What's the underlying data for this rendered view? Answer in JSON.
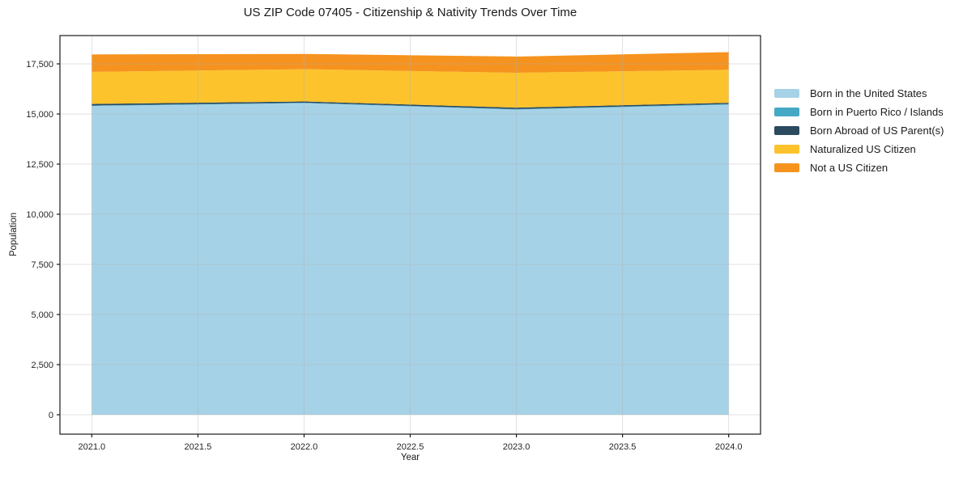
{
  "chart_data": {
    "type": "area",
    "stacked": true,
    "title": "US ZIP Code 07405 - Citizenship & Nativity Trends Over Time",
    "xlabel": "Year",
    "ylabel": "Population",
    "x": [
      2021,
      2022,
      2023,
      2024
    ],
    "series": [
      {
        "name": "Born in the United States",
        "color": "#a6d2e7",
        "values": [
          15400,
          15540,
          15220,
          15470
        ]
      },
      {
        "name": "Born in Puerto Rico / Islands",
        "color": "#45a9c5",
        "values": [
          25,
          25,
          25,
          30
        ]
      },
      {
        "name": "Born Abroad of US Parent(s)",
        "color": "#2c4a5e",
        "values": [
          75,
          60,
          70,
          60
        ]
      },
      {
        "name": "Naturalized US Citizen",
        "color": "#fcc32d",
        "values": [
          1600,
          1610,
          1740,
          1645
        ]
      },
      {
        "name": "Not a US Citizen",
        "color": "#f6931e",
        "values": [
          870,
          760,
          810,
          880
        ]
      }
    ],
    "xlim": [
      2020.85,
      2024.15
    ],
    "ylim": [
      -968,
      18911
    ],
    "x_ticks": [
      {
        "value": 2021.0,
        "label": "2021.0"
      },
      {
        "value": 2021.5,
        "label": "2021.5"
      },
      {
        "value": 2022.0,
        "label": "2022.0"
      },
      {
        "value": 2022.5,
        "label": "2022.5"
      },
      {
        "value": 2023.0,
        "label": "2023.0"
      },
      {
        "value": 2023.5,
        "label": "2023.5"
      },
      {
        "value": 2024.0,
        "label": "2024.0"
      }
    ],
    "y_ticks": [
      {
        "value": 0,
        "label": "0"
      },
      {
        "value": 2500,
        "label": "2,500"
      },
      {
        "value": 5000,
        "label": "5,000"
      },
      {
        "value": 7500,
        "label": "7,500"
      },
      {
        "value": 10000,
        "label": "10,000"
      },
      {
        "value": 12500,
        "label": "12,500"
      },
      {
        "value": 15000,
        "label": "15,000"
      },
      {
        "value": 17500,
        "label": "17,500"
      }
    ],
    "grid": true,
    "legend_position": "right-outside"
  }
}
